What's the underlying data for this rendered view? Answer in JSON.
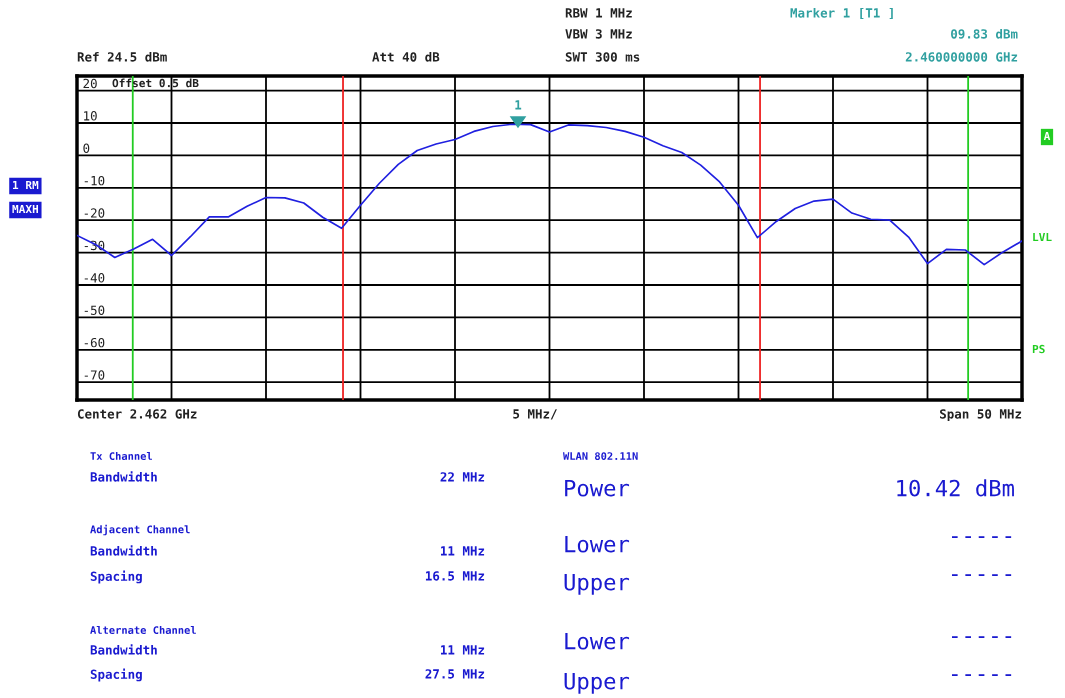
{
  "chart_data": {
    "type": "line",
    "categories": [
      null,
      null,
      null,
      null,
      null,
      null,
      null,
      null,
      null,
      null,
      null,
      null,
      null,
      null,
      null,
      null,
      null,
      null,
      null,
      null,
      null,
      null,
      null,
      null,
      null,
      null,
      null,
      null,
      null,
      null,
      null,
      null,
      null,
      null,
      null,
      null,
      null,
      null,
      null,
      null,
      null,
      null,
      null,
      null,
      null,
      null,
      null,
      null,
      null,
      null,
      null
    ],
    "series": [
      {
        "color": "#2020e0",
        "values": [
          -24.7,
          -27.6,
          -31.5,
          -28.9,
          -25.9,
          -30.9,
          -25.1,
          -19.0,
          -19.0,
          -15.7,
          -13.0,
          -13.1,
          -14.7,
          -19.1,
          -22.5,
          -15.4,
          -8.6,
          -2.8,
          1.5,
          3.5,
          4.9,
          7.4,
          8.9,
          9.6,
          9.5,
          7.2,
          9.4,
          9.2,
          8.6,
          7.4,
          5.6,
          3.0,
          0.9,
          -3.0,
          -8.2,
          -15.4,
          -25.4,
          -20.4,
          -16.4,
          -14.1,
          -13.5,
          -17.8,
          -19.7,
          -20.0,
          -25.2,
          -33.4,
          -29.0,
          -29.2,
          -33.7,
          -29.8,
          -26.4
        ]
      }
    ],
    "marker": "none",
    "line_style": "solid",
    "ylim": [
      -75.5,
      24.5
    ],
    "yticks": [
      -70,
      -60,
      -50,
      -40,
      -30,
      -20,
      -10,
      0,
      10,
      20
    ],
    "grid": true,
    "annotations": [
      "Ref 24.5 dBm",
      "Att 40 dB",
      "RBW 1 MHz",
      "VBW 3 MHz",
      "SWT 300 ms",
      "Marker 1 [T1 ]",
      "09.83 dBm",
      "2.460000000 GHz",
      "Offset 0.5 dB",
      "1 RM",
      "MAXH",
      "A",
      "LVL",
      "PS",
      "Center 2.462 GHz",
      "5 MHz/",
      "Span 50 MHz",
      "Tx Channel",
      "Bandwidth",
      "22 MHz",
      "Adjacent Channel",
      "Bandwidth",
      "11 MHz",
      "Spacing",
      "16.5 MHz",
      "Alternate Channel",
      "Bandwidth",
      "11 MHz",
      "Spacing",
      "27.5 MHz",
      "WLAN 802.11N",
      "Power",
      "10.42 dBm",
      "Lower",
      "-----",
      "Upper",
      "-----",
      "Lower",
      "-----",
      "Upper",
      "-----",
      "1"
    ]
  }
}
